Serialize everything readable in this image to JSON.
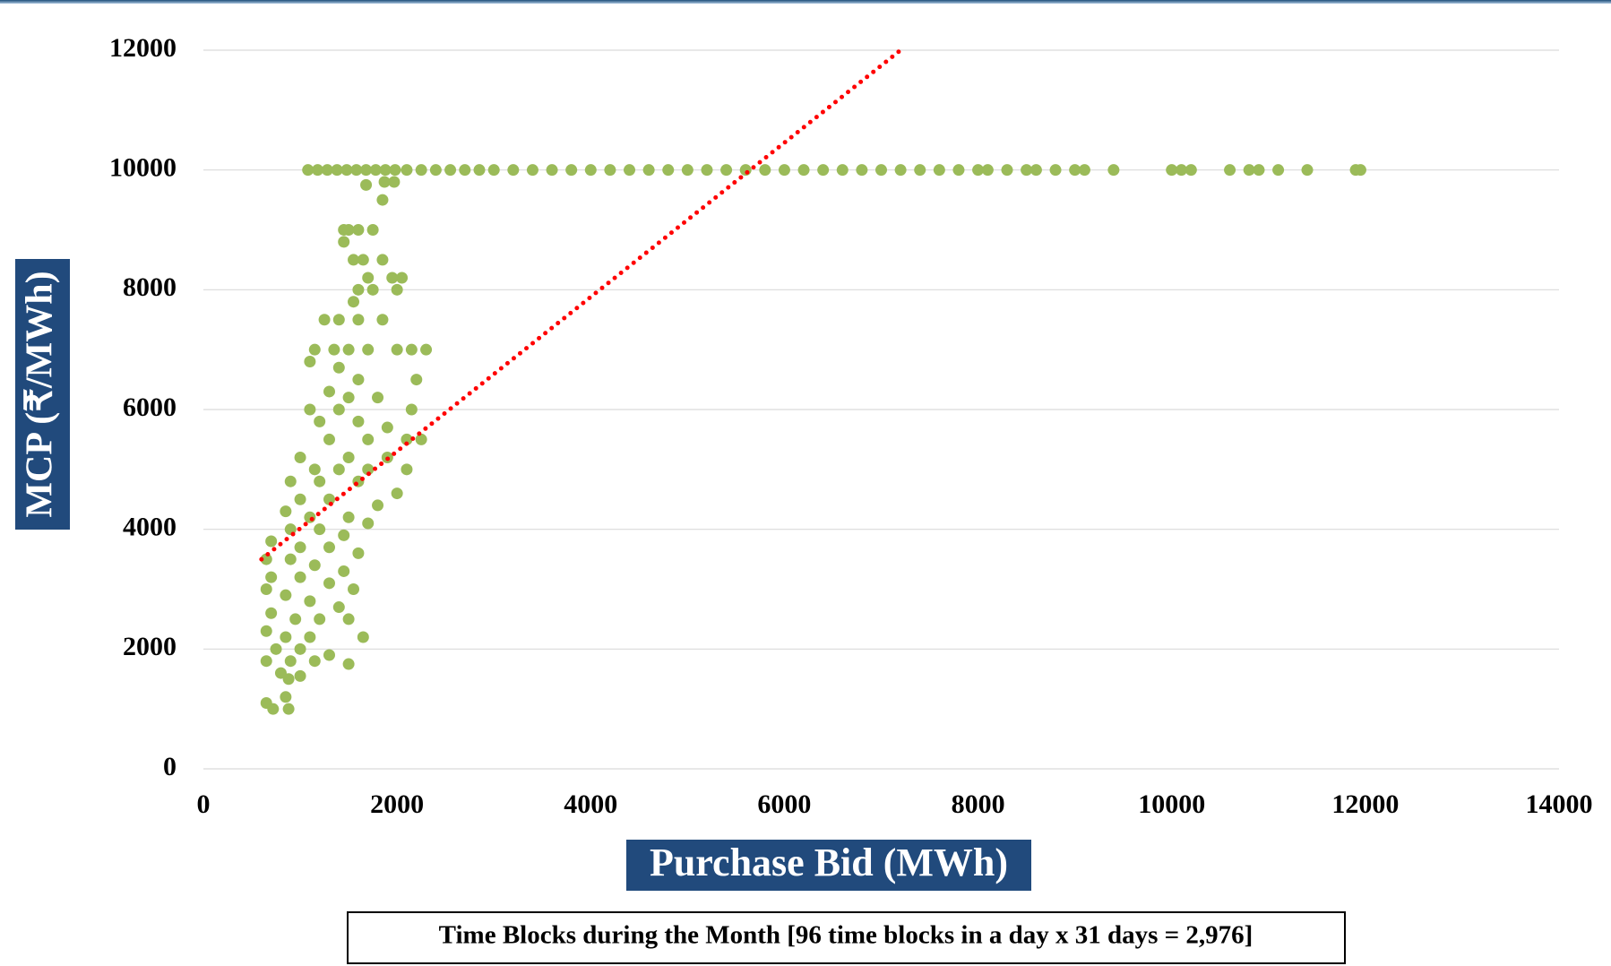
{
  "chart_data": {
    "type": "scatter",
    "x_label": "Purchase Bid (MWh)",
    "y_label": "MCP (₹/MWh)",
    "note": "Time Blocks during the Month [96 time blocks in a day x 31 days = 2,976]",
    "xlim": [
      0,
      14000
    ],
    "xticks": [
      0,
      2000,
      4000,
      6000,
      8000,
      10000,
      12000,
      14000
    ],
    "ylim": [
      0,
      12000
    ],
    "yticks": [
      0,
      2000,
      4000,
      6000,
      8000,
      10000,
      12000
    ],
    "grid": true,
    "color": "#9bbb59",
    "x": [
      1080,
      1180,
      1280,
      1380,
      1480,
      1580,
      1680,
      1780,
      1880,
      1980,
      2100,
      2250,
      2400,
      2550,
      2700,
      2850,
      3000,
      3200,
      3400,
      3600,
      3800,
      4000,
      4200,
      4400,
      4600,
      4800,
      5000,
      5200,
      5400,
      5600,
      5800,
      6000,
      6200,
      6400,
      6600,
      6800,
      7000,
      7200,
      7400,
      7600,
      7800,
      8000,
      8100,
      8300,
      8500,
      8600,
      8800,
      9000,
      9100,
      9400,
      10000,
      10100,
      10200,
      10600,
      10800,
      10900,
      11100,
      11400,
      11900,
      11950,
      1680,
      1870,
      1850,
      1970,
      1450,
      1500,
      1600,
      1750,
      1450,
      1550,
      1650,
      1850,
      1700,
      1950,
      2050,
      1600,
      1750,
      2000,
      1550,
      1250,
      1400,
      1600,
      1850,
      1150,
      1350,
      1500,
      1700,
      2000,
      2150,
      2300,
      1100,
      1400,
      1600,
      2200,
      1300,
      1500,
      1800,
      1100,
      1400,
      2150,
      1200,
      1600,
      1900,
      1300,
      1700,
      2100,
      2250,
      1000,
      1500,
      1900,
      1150,
      1400,
      1700,
      2100,
      900,
      1200,
      1600,
      2000,
      1000,
      1300,
      1800,
      850,
      1100,
      1500,
      1700,
      900,
      1200,
      1450,
      700,
      1000,
      1300,
      1600,
      650,
      900,
      1150,
      1450,
      700,
      1000,
      1300,
      1550,
      650,
      850,
      1100,
      1400,
      700,
      950,
      1200,
      1500,
      650,
      850,
      1100,
      1650,
      750,
      1000,
      1300,
      650,
      900,
      1150,
      1500,
      800,
      1000,
      880,
      650,
      720,
      850,
      880
    ],
    "values": [
      10000,
      10000,
      10000,
      10000,
      10000,
      10000,
      10000,
      10000,
      10000,
      10000,
      10000,
      10000,
      10000,
      10000,
      10000,
      10000,
      10000,
      10000,
      10000,
      10000,
      10000,
      10000,
      10000,
      10000,
      10000,
      10000,
      10000,
      10000,
      10000,
      10000,
      10000,
      10000,
      10000,
      10000,
      10000,
      10000,
      10000,
      10000,
      10000,
      10000,
      10000,
      10000,
      10000,
      10000,
      10000,
      10000,
      10000,
      10000,
      10000,
      10000,
      10000,
      10000,
      10000,
      10000,
      10000,
      10000,
      10000,
      10000,
      10000,
      10000,
      9750,
      9800,
      9500,
      9800,
      9000,
      9000,
      9000,
      9000,
      8800,
      8500,
      8500,
      8500,
      8200,
      8200,
      8200,
      8000,
      8000,
      8000,
      7800,
      7500,
      7500,
      7500,
      7500,
      7000,
      7000,
      7000,
      7000,
      7000,
      7000,
      7000,
      6800,
      6700,
      6500,
      6500,
      6300,
      6200,
      6200,
      6000,
      6000,
      6000,
      5800,
      5800,
      5700,
      5500,
      5500,
      5500,
      5500,
      5200,
      5200,
      5200,
      5000,
      5000,
      5000,
      5000,
      4800,
      4800,
      4800,
      4600,
      4500,
      4500,
      4400,
      4300,
      4200,
      4200,
      4100,
      4000,
      4000,
      3900,
      3800,
      3700,
      3700,
      3600,
      3500,
      3500,
      3400,
      3300,
      3200,
      3200,
      3100,
      3000,
      3000,
      2900,
      2800,
      2700,
      2600,
      2500,
      2500,
      2500,
      2300,
      2200,
      2200,
      2200,
      2000,
      2000,
      1900,
      1800,
      1800,
      1800,
      1750,
      1600,
      1550,
      1500,
      1100,
      1000,
      1200,
      1000
    ],
    "trendline": {
      "x": [
        600,
        7200
      ],
      "values": [
        3500,
        12000
      ],
      "color": "#ff0000"
    }
  }
}
